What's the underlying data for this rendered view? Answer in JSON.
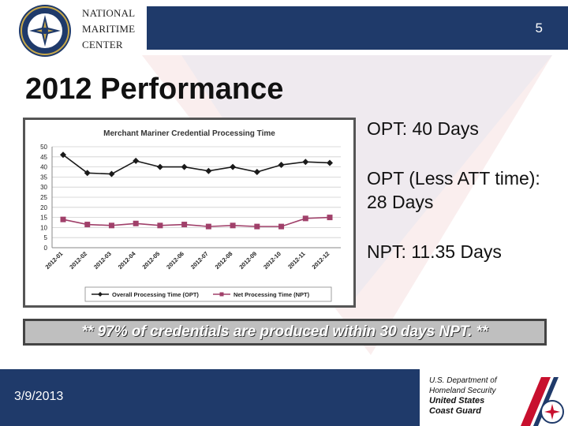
{
  "org": {
    "line1": "NATIONAL",
    "line2": "MARITIME",
    "line3": "CENTER"
  },
  "slide_number": "5",
  "title": "2012 Performance",
  "bullets": [
    "OPT: 40 Days",
    "OPT (Less ATT time): 28 Days",
    "NPT: 11.35 Days"
  ],
  "note": "** 97% of credentials are produced within 30 days NPT. **",
  "date": "3/9/2013",
  "dhs": {
    "line1": "U.S. Department of",
    "line2": "Homeland Security",
    "line3": "United States",
    "line4": "Coast Guard"
  },
  "colors": {
    "navy": "#1f3a6a",
    "opt_series": "#1a1a1a",
    "npt_series": "#a0406a",
    "stripe_red": "#c8102e",
    "stripe_blue": "#1f3a6a"
  },
  "chart_data": {
    "type": "line",
    "title": "Merchant Mariner Credential Processing Time",
    "categories": [
      "2012-01",
      "2012-02",
      "2012-03",
      "2012-04",
      "2012-05",
      "2012-06",
      "2012-07",
      "2012-08",
      "2012-09",
      "2012-10",
      "2012-11",
      "2012-12"
    ],
    "series": [
      {
        "name": "Overall Processing Time (OPT)",
        "marker": "diamond",
        "values": [
          46,
          37,
          36.5,
          43,
          40,
          40,
          38,
          40,
          37.5,
          41,
          42.5,
          42
        ]
      },
      {
        "name": "Net Processing Time (NPT)",
        "marker": "square",
        "values": [
          14,
          11.5,
          11,
          12,
          11,
          11.5,
          10.5,
          11,
          10.5,
          10.5,
          14.5,
          15
        ]
      }
    ],
    "ylim": [
      0,
      50
    ],
    "yticks": [
      0,
      5,
      10,
      15,
      20,
      25,
      30,
      35,
      40,
      45,
      50
    ],
    "grid": true,
    "legend_position": "bottom"
  }
}
